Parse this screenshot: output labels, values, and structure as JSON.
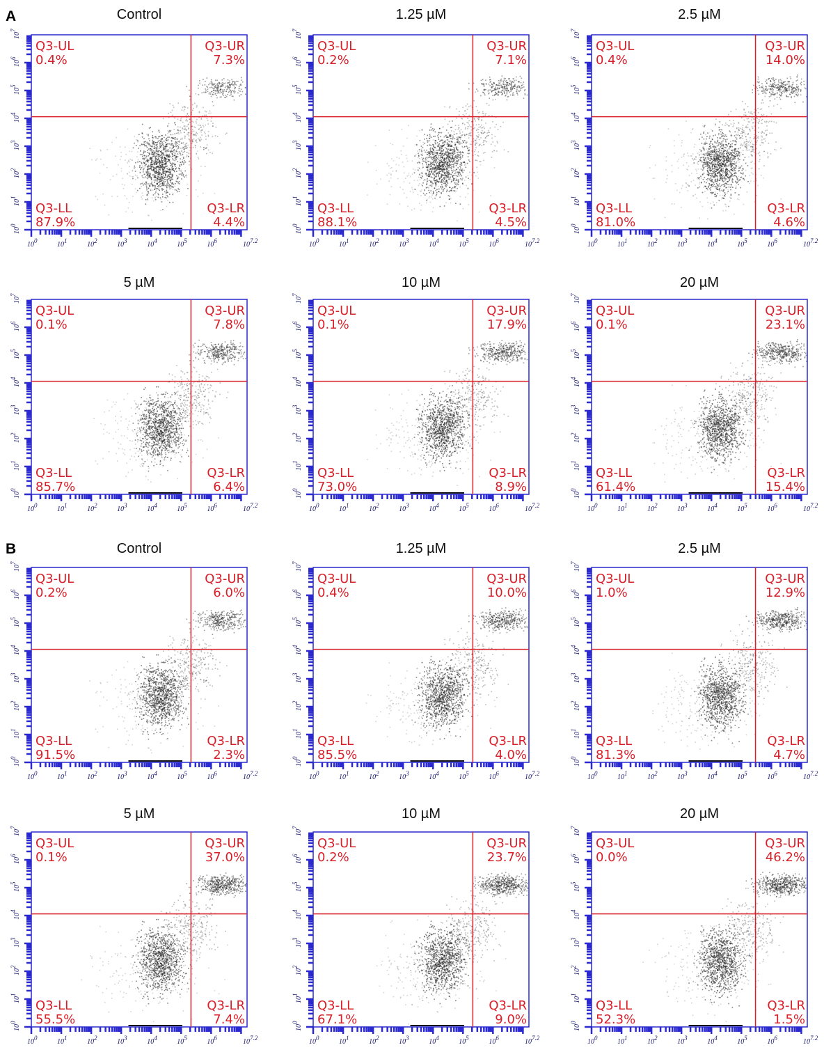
{
  "figure": {
    "axis": {
      "base": "10",
      "x_exponents": [
        "0",
        "1",
        "2",
        "3",
        "4",
        "5",
        "6",
        "7.2"
      ],
      "y_exponents": [
        "0",
        "1",
        "2",
        "3",
        "4",
        "5",
        "6",
        "7"
      ]
    },
    "quadrant_names": {
      "UL": "Q3-UL",
      "UR": "Q3-UR",
      "LL": "Q3-LL",
      "LR": "Q3-LR"
    },
    "sections": [
      {
        "label": "A",
        "plots": [
          {
            "title": "Control",
            "UL": "0.4%",
            "UR": "7.3%",
            "LL": "87.9%",
            "LR": "4.4%"
          },
          {
            "title": "1.25 µM",
            "UL": "0.2%",
            "UR": "7.1%",
            "LL": "88.1%",
            "LR": "4.5%"
          },
          {
            "title": "2.5 µM",
            "UL": "0.4%",
            "UR": "14.0%",
            "LL": "81.0%",
            "LR": "4.6%"
          },
          {
            "title": "5 µM",
            "UL": "0.1%",
            "UR": "7.8%",
            "LL": "85.7%",
            "LR": "6.4%"
          },
          {
            "title": "10 µM",
            "UL": "0.1%",
            "UR": "17.9%",
            "LL": "73.0%",
            "LR": "8.9%"
          },
          {
            "title": "20 µM",
            "UL": "0.1%",
            "UR": "23.1%",
            "LL": "61.4%",
            "LR": "15.4%"
          }
        ]
      },
      {
        "label": "B",
        "plots": [
          {
            "title": "Control",
            "UL": "0.2%",
            "UR": "6.0%",
            "LL": "91.5%",
            "LR": "2.3%"
          },
          {
            "title": "1.25 µM",
            "UL": "0.4%",
            "UR": "10.0%",
            "LL": "85.5%",
            "LR": "4.0%"
          },
          {
            "title": "2.5 µM",
            "UL": "1.0%",
            "UR": "12.9%",
            "LL": "81.3%",
            "LR": "4.7%"
          },
          {
            "title": "5 µM",
            "UL": "0.1%",
            "UR": "37.0%",
            "LL": "55.5%",
            "LR": "7.4%"
          },
          {
            "title": "10 µM",
            "UL": "0.2%",
            "UR": "23.7%",
            "LL": "67.1%",
            "LR": "9.0%"
          },
          {
            "title": "20 µM",
            "UL": "0.0%",
            "UR": "46.2%",
            "LL": "52.3%",
            "LR": "1.5%"
          }
        ]
      }
    ]
  }
}
